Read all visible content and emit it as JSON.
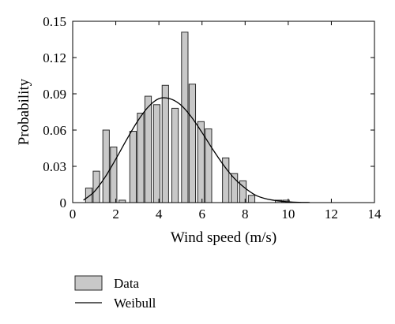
{
  "chart_data": {
    "type": "bar",
    "xlabel": "Wind speed (m/s)",
    "ylabel": "Probability",
    "xlim": [
      0,
      14
    ],
    "ylim": [
      0,
      0.15
    ],
    "xticks": [
      "0",
      "2",
      "4",
      "6",
      "8",
      "10",
      "12",
      "14"
    ],
    "yticks": [
      "0",
      "0.03",
      "0.06",
      "0.09",
      "0.12",
      "0.15"
    ],
    "bin_width": 0.3,
    "legend_position": "bottom-left",
    "colors": {
      "bar_fill": "#c8c8c8",
      "bar_stroke": "#2a2a2a",
      "line": "#000000"
    },
    "series": [
      {
        "name": "Data",
        "type": "bar",
        "x": [
          0.75,
          1.1,
          1.55,
          1.9,
          2.3,
          2.8,
          3.15,
          3.5,
          3.9,
          4.3,
          4.75,
          5.2,
          5.55,
          5.95,
          6.3,
          7.1,
          7.5,
          7.9,
          8.3,
          9.55,
          9.9
        ],
        "values": [
          0.012,
          0.026,
          0.06,
          0.046,
          0.002,
          0.059,
          0.074,
          0.088,
          0.081,
          0.097,
          0.078,
          0.141,
          0.098,
          0.067,
          0.061,
          0.037,
          0.024,
          0.018,
          0.006,
          0.002,
          0.002
        ]
      },
      {
        "name": "Weibull",
        "type": "line",
        "x": [
          0.5,
          1,
          1.5,
          2,
          2.5,
          3,
          3.5,
          4,
          4.5,
          5,
          5.5,
          6,
          6.5,
          7,
          7.5,
          8,
          8.5,
          9,
          9.5,
          10,
          10.5,
          11
        ],
        "values": [
          0.002,
          0.009,
          0.021,
          0.036,
          0.052,
          0.067,
          0.079,
          0.086,
          0.086,
          0.081,
          0.071,
          0.058,
          0.044,
          0.031,
          0.02,
          0.012,
          0.006,
          0.003,
          0.0015,
          0.0006,
          0.0002,
          0.0001
        ]
      }
    ]
  }
}
